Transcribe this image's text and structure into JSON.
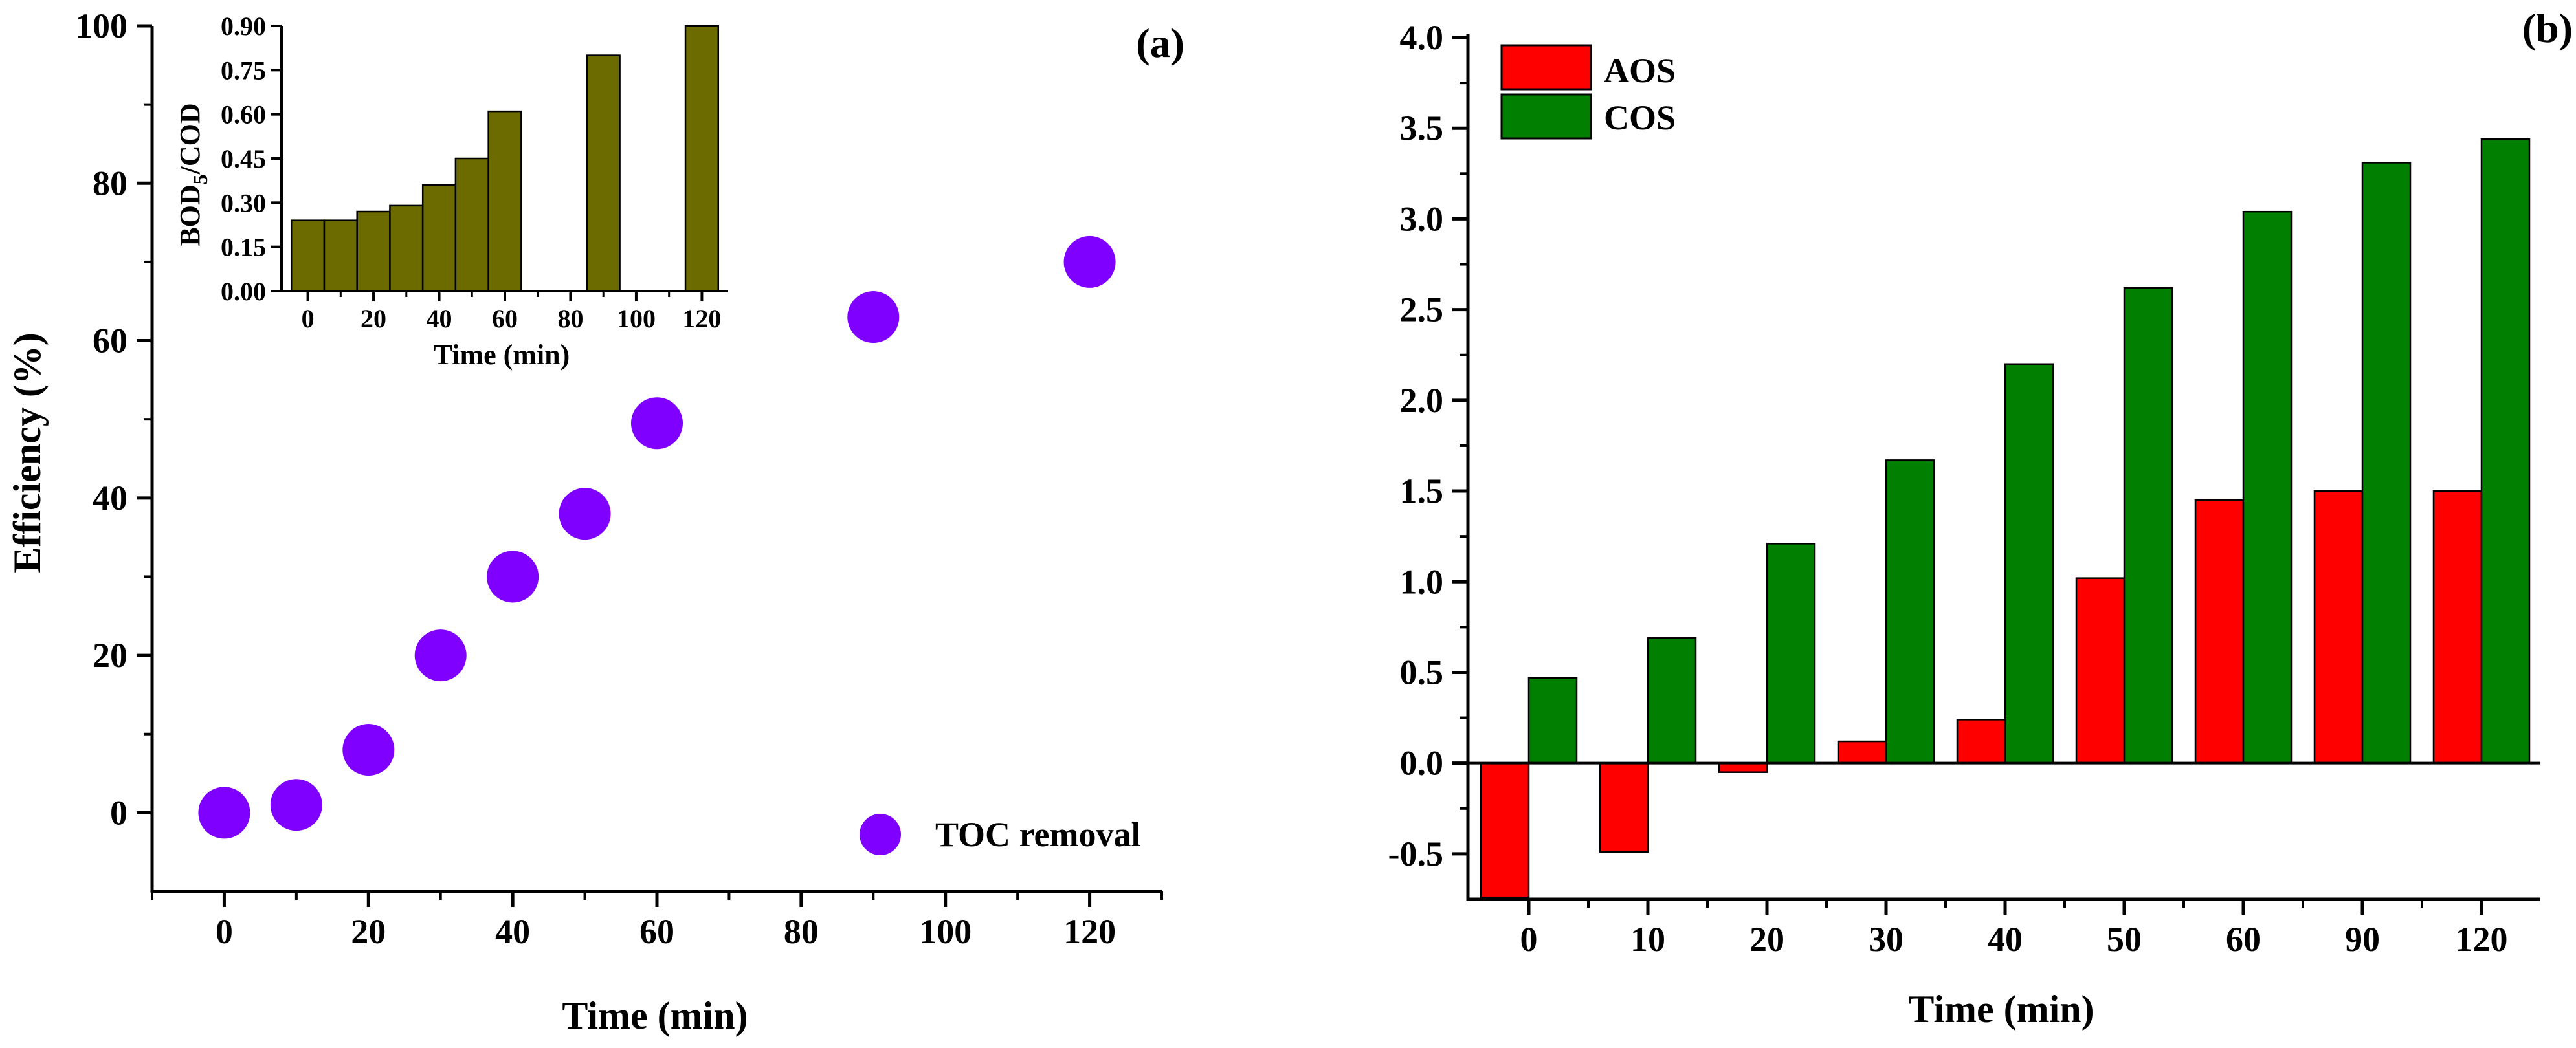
{
  "chart_data": [
    {
      "panel_label": "(a)",
      "type": "scatter",
      "xlabel": "Time (min)",
      "ylabel": "Efficiency (%)",
      "xlim": [
        -10,
        130
      ],
      "ylim": [
        -10,
        100
      ],
      "x_ticks": [
        0,
        20,
        40,
        60,
        80,
        100,
        120
      ],
      "y_ticks": [
        0,
        20,
        40,
        60,
        80,
        100
      ],
      "legend": {
        "position": "bottom-right",
        "label": "TOC removal"
      },
      "marker_color": "#7f00ff",
      "series": [
        {
          "name": "TOC removal",
          "x": [
            0,
            10,
            20,
            30,
            40,
            50,
            60,
            90,
            120
          ],
          "y": [
            0,
            1,
            8,
            20,
            30,
            38,
            49.5,
            63,
            70
          ]
        }
      ]
    },
    {
      "panel_label": "",
      "type": "bar",
      "inset": true,
      "xlabel": "Time (min)",
      "ylabel_main": "BOD",
      "ylabel_sub": "5",
      "ylabel_tail": "/COD",
      "xlim": [
        -8,
        128
      ],
      "ylim": [
        0,
        0.9
      ],
      "x_ticks": [
        0,
        20,
        40,
        60,
        80,
        100,
        120
      ],
      "y_ticks": [
        "0.00",
        "0.15",
        "0.30",
        "0.45",
        "0.60",
        "0.75",
        "0.90"
      ],
      "bar_color": "#6b6b00",
      "x": [
        0,
        10,
        20,
        30,
        40,
        50,
        60,
        90,
        120
      ],
      "values": [
        0.24,
        0.24,
        0.27,
        0.29,
        0.36,
        0.45,
        0.61,
        0.8,
        0.9
      ]
    },
    {
      "panel_label": "(b)",
      "type": "bar",
      "xlabel": "Time (min)",
      "ylabel": "",
      "ylim": [
        -0.75,
        4.0
      ],
      "y_ticks": [
        "-0.5",
        "0.0",
        "0.5",
        "1.0",
        "1.5",
        "2.0",
        "2.5",
        "3.0",
        "3.5",
        "4.0"
      ],
      "categories": [
        "0",
        "10",
        "20",
        "30",
        "40",
        "50",
        "60",
        "90",
        "120"
      ],
      "legend": {
        "position": "top-left"
      },
      "series": [
        {
          "name": "AOS",
          "color": "#ff0000",
          "values": [
            -0.74,
            -0.49,
            -0.05,
            0.12,
            0.24,
            1.02,
            1.45,
            1.5,
            1.5
          ]
        },
        {
          "name": "COS",
          "color": "#007f00",
          "values": [
            0.47,
            0.69,
            1.21,
            1.67,
            2.2,
            2.62,
            3.04,
            3.31,
            3.44
          ]
        }
      ]
    }
  ]
}
